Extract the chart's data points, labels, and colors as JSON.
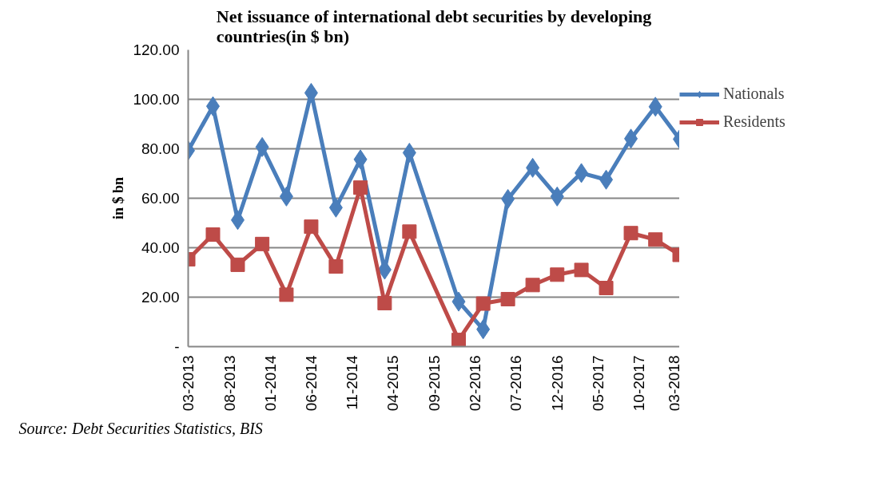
{
  "chart_data": {
    "type": "line",
    "title": "Net issuance of international debt securities by developing countries(in $ bn)",
    "ylabel": "in $ bn",
    "xlim": [
      "2013-03",
      "2018-03"
    ],
    "xticks": [
      {
        "value": "2013-03",
        "label": "03-2013"
      },
      {
        "value": "2013-08",
        "label": "08-2013"
      },
      {
        "value": "2014-01",
        "label": "01-2014"
      },
      {
        "value": "2014-06",
        "label": "06-2014"
      },
      {
        "value": "2014-11",
        "label": "11-2014"
      },
      {
        "value": "2015-04",
        "label": "04-2015"
      },
      {
        "value": "2015-09",
        "label": "09-2015"
      },
      {
        "value": "2016-02",
        "label": "02-2016"
      },
      {
        "value": "2016-07",
        "label": "07-2016"
      },
      {
        "value": "2016-12",
        "label": "12-2016"
      },
      {
        "value": "2017-05",
        "label": "05-2017"
      },
      {
        "value": "2017-10",
        "label": "10-2017"
      },
      {
        "value": "2018-03",
        "label": "03-2018"
      }
    ],
    "ylim": [
      0,
      120
    ],
    "yticks": [
      {
        "value": 0,
        "label": "-"
      },
      {
        "value": 20,
        "label": "20.00"
      },
      {
        "value": 40,
        "label": "40.00"
      },
      {
        "value": 60,
        "label": "60.00"
      },
      {
        "value": 80,
        "label": "80.00"
      },
      {
        "value": 100,
        "label": "100.00"
      },
      {
        "value": 120,
        "label": "120.00"
      }
    ],
    "x": [
      "2013-03",
      "2013-06",
      "2013-09",
      "2013-12",
      "2014-03",
      "2014-06",
      "2014-09",
      "2014-12",
      "2015-03",
      "2015-06",
      "2015-12",
      "2016-03",
      "2016-06",
      "2016-09",
      "2016-12",
      "2017-03",
      "2017-06",
      "2017-09",
      "2017-12",
      "2018-03"
    ],
    "series": [
      {
        "name": "Nationals",
        "color": "#4a7ebb",
        "marker": "diamond",
        "values": [
          79.3,
          97.2,
          51.2,
          80.7,
          60.7,
          102.6,
          56.2,
          75.7,
          31.1,
          78.4,
          18.2,
          7.0,
          59.7,
          72.3,
          60.7,
          70.2,
          67.5,
          84.1,
          97.0,
          83.9
        ]
      },
      {
        "name": "Residents",
        "color": "#be4b48",
        "marker": "square",
        "values": [
          35.3,
          45.3,
          33.1,
          41.5,
          21.0,
          48.5,
          32.4,
          64.3,
          17.6,
          46.5,
          2.7,
          17.4,
          19.2,
          24.9,
          29.1,
          31.0,
          23.7,
          45.9,
          43.3,
          37.1
        ]
      }
    ],
    "grid": "y",
    "legend": "right",
    "line_style": "solid",
    "annotations": [
      "Source: Debt Securities Statistics, BIS"
    ]
  }
}
